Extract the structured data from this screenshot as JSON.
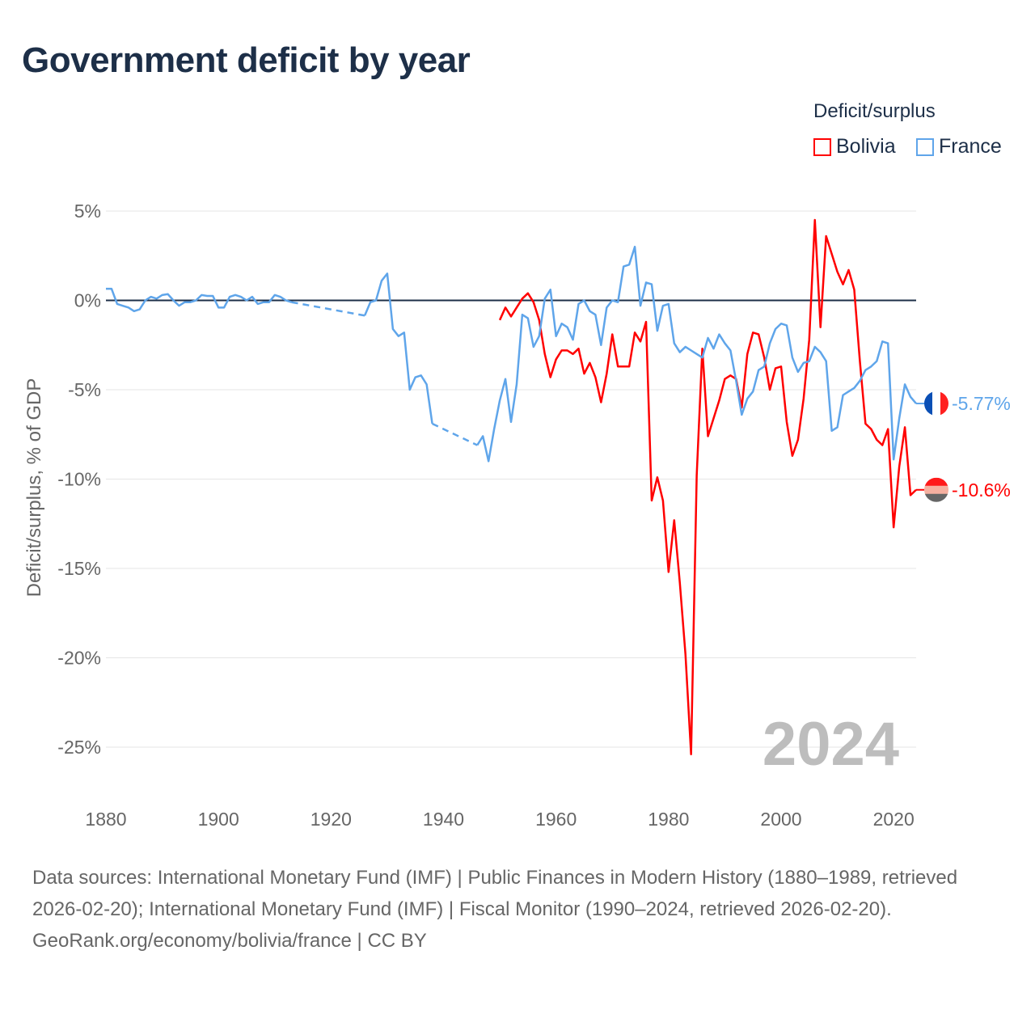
{
  "chart_data": {
    "type": "line",
    "title": "Government deficit by year",
    "legend_title": "Deficit/surplus",
    "legend_placement": "top-right",
    "ylabel": "Deficit/surplus, % of GDP",
    "xlabel": "",
    "xlim": [
      1880,
      2024
    ],
    "ylim": [
      -25,
      5
    ],
    "x_ticks": [
      1880,
      1900,
      1920,
      1940,
      1960,
      1980,
      2000,
      2020
    ],
    "x_tick_labels": [
      "1880",
      "1900",
      "1920",
      "1940",
      "1960",
      "1980",
      "2000",
      "2020"
    ],
    "y_ticks": [
      5,
      0,
      -5,
      -10,
      -15,
      -20,
      -25
    ],
    "y_tick_labels": [
      "5%",
      "0%",
      "-5%",
      "-10%",
      "-15%",
      "-20%",
      "-25%"
    ],
    "grid": true,
    "year_watermark": "2024",
    "series": [
      {
        "name": "Bolivia",
        "color": "#ff0000",
        "end_label": "-10.6%",
        "flag_colors": [
          "#ff1a1a",
          "#f6b0a0",
          "#666666"
        ],
        "start_year": 1950,
        "values": [
          -1.1,
          -0.4,
          -0.9,
          -0.4,
          0.1,
          0.4,
          -0.1,
          -1.1,
          -3.0,
          -4.3,
          -3.3,
          -2.8,
          -2.8,
          -3.0,
          -2.7,
          -4.1,
          -3.5,
          -4.3,
          -5.7,
          -4.1,
          -1.9,
          -3.7,
          -3.7,
          -3.7,
          -1.8,
          -2.3,
          -1.2,
          -11.2,
          -9.9,
          -11.2,
          -15.2,
          -12.3,
          -15.8,
          -19.8,
          -25.4,
          -9.8,
          -2.7,
          -7.6,
          -6.6,
          -5.6,
          -4.4,
          -4.2,
          -4.4,
          -6.0,
          -3.0,
          -1.8,
          -1.9,
          -3.2,
          -5.0,
          -3.8,
          -3.7,
          -6.8,
          -8.7,
          -7.8,
          -5.5,
          -2.2,
          4.5,
          -1.5,
          3.6,
          2.6,
          1.6,
          0.9,
          1.7,
          0.6,
          -3.4,
          -6.9,
          -7.2,
          -7.8,
          -8.1,
          -7.2,
          -12.7,
          -9.3,
          -7.1,
          -10.9,
          -10.6
        ]
      },
      {
        "name": "France",
        "color": "#5fa5ea",
        "end_label": "-5.77%",
        "flag_colors": [
          "#0a4fb5",
          "#ffffff",
          "#ff2020"
        ],
        "start_year": 1880,
        "values": [
          0.65,
          0.65,
          -0.2,
          -0.3,
          -0.4,
          -0.6,
          -0.5,
          0,
          0.2,
          0.1,
          0.3,
          0.35,
          0,
          -0.3,
          -0.1,
          -0.1,
          0,
          0.3,
          0.25,
          0.25,
          -0.4,
          -0.4,
          0.2,
          0.3,
          0.2,
          0,
          0.2,
          -0.2,
          -0.1,
          -0.1,
          0.3,
          0.2,
          0,
          -0.1,
          null,
          null,
          null,
          null,
          null,
          null,
          null,
          null,
          null,
          null,
          null,
          null,
          -0.85,
          -0.1,
          0,
          1.1,
          1.5,
          -1.6,
          -2.0,
          -1.8,
          -5.0,
          -4.3,
          -4.2,
          -4.7,
          -6.9,
          null,
          null,
          null,
          null,
          null,
          null,
          null,
          -8.1,
          -7.6,
          -9.0,
          -7.2,
          -5.6,
          -4.4,
          -6.8,
          -4.7,
          -0.8,
          -1.0,
          -2.6,
          -2.0,
          0.1,
          0.6,
          -2.0,
          -1.3,
          -1.5,
          -2.2,
          -0.2,
          0,
          -0.6,
          -0.8,
          -2.5,
          -0.4,
          0,
          -0.1,
          1.9,
          2.0,
          3.0,
          -0.3,
          1.0,
          0.9,
          -1.7,
          -0.3,
          -0.2,
          -2.4,
          -2.9,
          -2.6,
          -2.8,
          -3.0,
          -3.2,
          -2.1,
          -2.7,
          -1.9,
          -2.4,
          -2.8,
          -4.5,
          -6.4,
          -5.5,
          -5.1,
          -3.9,
          -3.7,
          -2.4,
          -1.6,
          -1.3,
          -1.4,
          -3.2,
          -4.0,
          -3.5,
          -3.4,
          -2.6,
          -2.9,
          -3.4,
          -7.3,
          -7.1,
          -5.3,
          -5.1,
          -4.9,
          -4.5,
          -3.9,
          -3.7,
          -3.4,
          -2.3,
          -2.4,
          -8.9,
          -6.6,
          -4.7,
          -5.4,
          -5.77
        ]
      }
    ]
  },
  "footer": {
    "sources": "Data sources: International Monetary Fund (IMF) | Public Finances in Modern History (1880–1989, retrieved 2026-02-20); International Monetary Fund (IMF) | Fiscal Monitor (1990–2024, retrieved 2026-02-20).",
    "url": "GeoRank.org/economy/bolivia/france | CC BY"
  }
}
